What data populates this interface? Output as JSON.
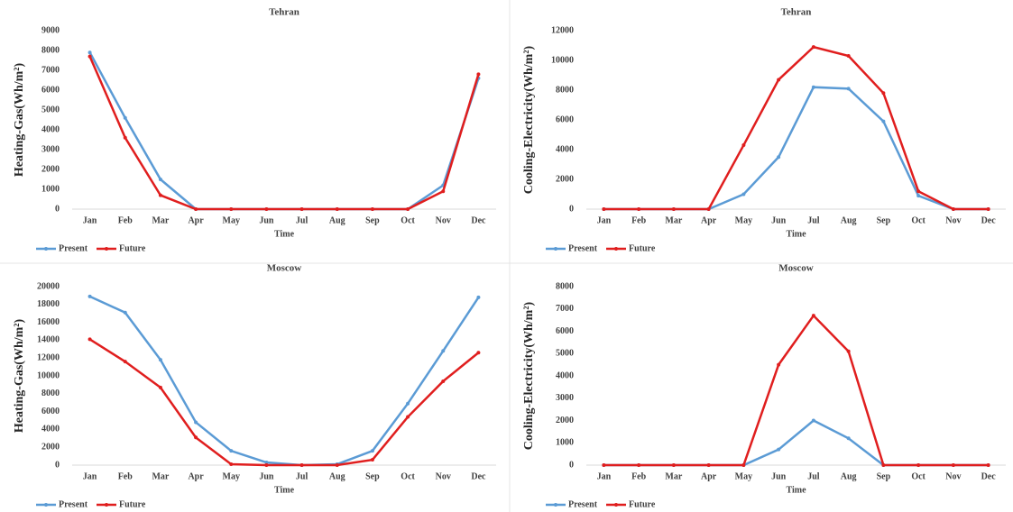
{
  "chart_data": [
    {
      "type": "line",
      "title": "Tehran",
      "x_label": "Time",
      "y_label": "Heating-Gas(Wh/m²)",
      "categories": [
        "Jan",
        "Feb",
        "Mar",
        "Apr",
        "May",
        "Jun",
        "Jul",
        "Aug",
        "Sep",
        "Oct",
        "Nov",
        "Dec"
      ],
      "series": [
        {
          "name": "Present",
          "color": "#5b9bd5",
          "values": [
            7900,
            4600,
            1500,
            0,
            0,
            0,
            0,
            0,
            0,
            0,
            1200,
            6600
          ]
        },
        {
          "name": "Future",
          "color": "#e01e1e",
          "values": [
            7700,
            3600,
            700,
            0,
            0,
            0,
            0,
            0,
            0,
            0,
            900,
            6800
          ]
        }
      ],
      "ylim": [
        0,
        9000
      ],
      "yticks": [
        0,
        1000,
        2000,
        3000,
        4000,
        5000,
        6000,
        7000,
        8000,
        9000
      ],
      "grid": false,
      "legend": "bottom-left"
    },
    {
      "type": "line",
      "title": "Tehran",
      "x_label": "Time",
      "y_label": "Cooling-Electricity(Wh/m²)",
      "categories": [
        "Jan",
        "Feb",
        "Mar",
        "Apr",
        "May",
        "Jun",
        "Jul",
        "Aug",
        "Sep",
        "Oct",
        "Nov",
        "Dec"
      ],
      "series": [
        {
          "name": "Present",
          "color": "#5b9bd5",
          "values": [
            0,
            0,
            0,
            0,
            1000,
            3500,
            8200,
            8100,
            5900,
            900,
            0,
            0
          ]
        },
        {
          "name": "Future",
          "color": "#e01e1e",
          "values": [
            0,
            0,
            0,
            0,
            4300,
            8700,
            10900,
            10300,
            7800,
            1200,
            0,
            0
          ]
        }
      ],
      "ylim": [
        0,
        12000
      ],
      "yticks": [
        0,
        2000,
        4000,
        6000,
        8000,
        10000,
        12000
      ],
      "grid": false,
      "legend": "bottom-left"
    },
    {
      "type": "line",
      "title": "Moscow",
      "x_label": "Time",
      "y_label": "Heating-Gas(Wh/m²)",
      "categories": [
        "Jan",
        "Feb",
        "Mar",
        "Apr",
        "May",
        "Jun",
        "Jul",
        "Aug",
        "Sep",
        "Oct",
        "Nov",
        "Dec"
      ],
      "series": [
        {
          "name": "Present",
          "color": "#5b9bd5",
          "values": [
            18900,
            17100,
            11800,
            4800,
            1600,
            300,
            0,
            100,
            1600,
            6900,
            12800,
            18800
          ]
        },
        {
          "name": "Future",
          "color": "#e01e1e",
          "values": [
            14100,
            11600,
            8700,
            3100,
            100,
            0,
            0,
            0,
            600,
            5400,
            9400,
            12600
          ]
        }
      ],
      "ylim": [
        0,
        20000
      ],
      "yticks": [
        0,
        2000,
        4000,
        6000,
        8000,
        10000,
        12000,
        14000,
        16000,
        18000,
        20000
      ],
      "grid": false,
      "legend": "bottom-left"
    },
    {
      "type": "line",
      "title": "Moscow",
      "x_label": "Time",
      "y_label": "Cooling-Electricity(Wh/m²)",
      "categories": [
        "Jan",
        "Feb",
        "Mar",
        "Apr",
        "May",
        "Jun",
        "Jul",
        "Aug",
        "Sep",
        "Oct",
        "Nov",
        "Dec"
      ],
      "series": [
        {
          "name": "Present",
          "color": "#5b9bd5",
          "values": [
            0,
            0,
            0,
            0,
            0,
            700,
            2000,
            1200,
            0,
            0,
            0,
            0
          ]
        },
        {
          "name": "Future",
          "color": "#e01e1e",
          "values": [
            0,
            0,
            0,
            0,
            0,
            4500,
            6700,
            5100,
            0,
            0,
            0,
            0
          ]
        }
      ],
      "ylim": [
        0,
        8000
      ],
      "yticks": [
        0,
        1000,
        2000,
        3000,
        4000,
        5000,
        6000,
        7000,
        8000
      ],
      "grid": false,
      "legend": "bottom-left"
    }
  ]
}
